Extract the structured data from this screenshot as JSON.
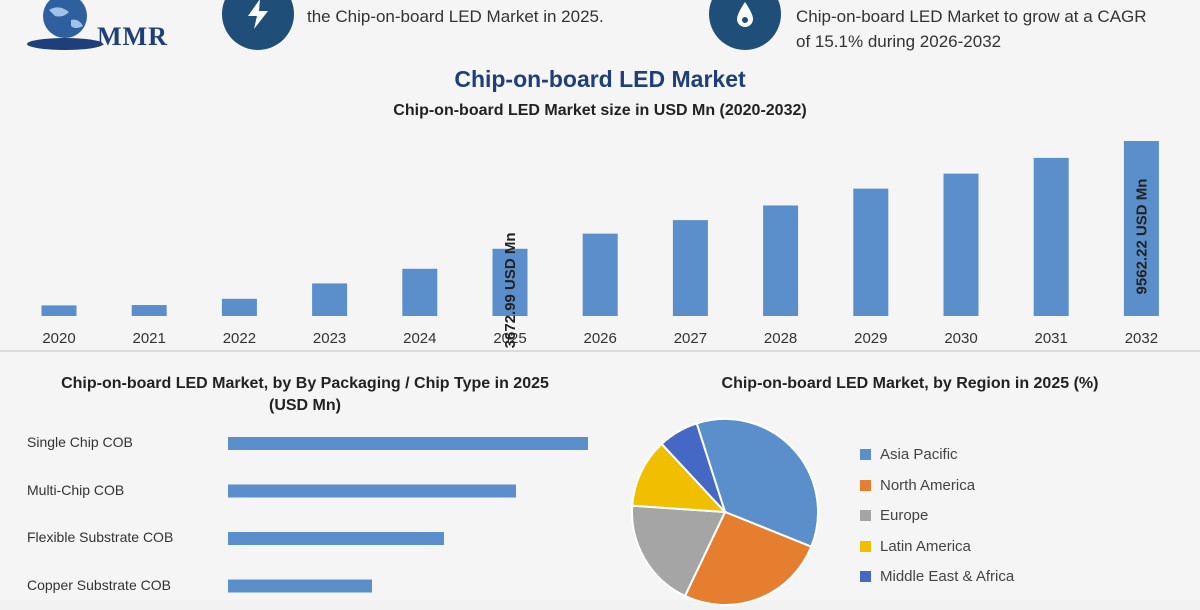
{
  "brand": {
    "logo_text": "MMR"
  },
  "header": {
    "left_text_line1": "the Chip-on-board LED Market in 2025.",
    "right_text_line1": "Chip-on-board LED Market to grow at a CAGR",
    "right_text_line2": "of 15.1% during 2026-2032"
  },
  "title": "Chip-on-board LED Market",
  "colors": {
    "bar": "#5b8fcb",
    "icon_bg": "#1f4e79",
    "title": "#1f3f7a"
  },
  "chart_data": [
    {
      "type": "bar",
      "title": "Chip-on-board LED Market size in USD Mn (2020-2032)",
      "categories": [
        "2020",
        "2021",
        "2022",
        "2023",
        "2024",
        "2025",
        "2026",
        "2027",
        "2028",
        "2029",
        "2030",
        "2031",
        "2032"
      ],
      "values": [
        580,
        600,
        940,
        1780,
        2580,
        3672.99,
        4500,
        5240,
        6040,
        6960,
        7780,
        8640,
        9562.22
      ],
      "ylim": [
        0,
        9562.22
      ],
      "annotations": [
        {
          "category": "2025",
          "text": "3672.99 USD Mn"
        },
        {
          "category": "2032",
          "text": "9562.22 USD Mn"
        }
      ]
    },
    {
      "type": "bar",
      "orientation": "horizontal",
      "title": "Chip-on-board LED Market, by By Packaging / Chip Type in 2025 (USD Mn)",
      "title_line1": "Chip-on-board LED Market, by By Packaging / Chip Type in 2025",
      "title_line2": "(USD Mn)",
      "categories": [
        "Single Chip COB",
        "Multi-Chip COB",
        "Flexible Substrate COB",
        "Copper Substrate COB"
      ],
      "values": [
        100,
        80,
        60,
        40
      ]
    },
    {
      "type": "pie",
      "title": "Chip-on-board LED Market, by Region in 2025 (%)",
      "categories": [
        "Asia Pacific",
        "North America",
        "Europe",
        "Latin America",
        "Middle East & Africa"
      ],
      "values": [
        36,
        26,
        19,
        12,
        7
      ],
      "colors": [
        "#5b8fcb",
        "#e57f2f",
        "#a5a5a5",
        "#f0c000",
        "#4468c3"
      ],
      "legend": "right"
    }
  ]
}
